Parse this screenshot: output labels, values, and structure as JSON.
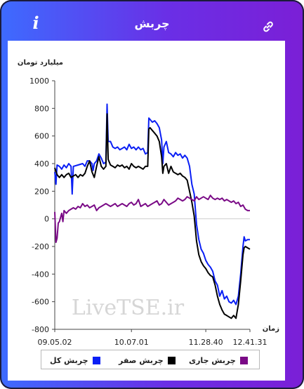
{
  "header": {
    "title": "چربش",
    "info_label": "i",
    "link_icon": "link-icon"
  },
  "colors": {
    "total": "#0a1ff5",
    "zero": "#000000",
    "current": "#7a0a86",
    "watermark": "#d6d6d6"
  },
  "watermark": "LiveTSE.ir",
  "chart_data": {
    "type": "line",
    "ylabel": "میلیارد تومان",
    "xlabel": "زمان",
    "ylim": [
      -800,
      1000
    ],
    "yticks": [
      "1000",
      "800",
      "600",
      "400",
      "200",
      "0",
      "-200",
      "-400",
      "-600",
      "-800"
    ],
    "xticks": [
      "09.05.02",
      "10.07.01",
      "11.28.40",
      "12.41.31"
    ],
    "grid": false,
    "legend": "bottom",
    "series": [
      {
        "name": "چربش کل",
        "color": "#0a1ff5",
        "points": [
          [
            0,
            340
          ],
          [
            0.5,
            250
          ],
          [
            1,
            390
          ],
          [
            2,
            380
          ],
          [
            3,
            360
          ],
          [
            4,
            390
          ],
          [
            5,
            370
          ],
          [
            6,
            400
          ],
          [
            7,
            380
          ],
          [
            7.5,
            180
          ],
          [
            8,
            380
          ],
          [
            10,
            390
          ],
          [
            12,
            400
          ],
          [
            13,
            380
          ],
          [
            14,
            420
          ],
          [
            15,
            420
          ],
          [
            16,
            400
          ],
          [
            16.5,
            350
          ],
          [
            17,
            400
          ],
          [
            18,
            420
          ],
          [
            19,
            470
          ],
          [
            20,
            440
          ],
          [
            21,
            400
          ],
          [
            22,
            410
          ],
          [
            22.5,
            830
          ],
          [
            23,
            560
          ],
          [
            24,
            560
          ],
          [
            25,
            520
          ],
          [
            26,
            510
          ],
          [
            27,
            520
          ],
          [
            28,
            500
          ],
          [
            29,
            510
          ],
          [
            30,
            520
          ],
          [
            31,
            500
          ],
          [
            32,
            540
          ],
          [
            33,
            510
          ],
          [
            34,
            520
          ],
          [
            35,
            500
          ],
          [
            36,
            520
          ],
          [
            37,
            500
          ],
          [
            38,
            510
          ],
          [
            39,
            470
          ],
          [
            40,
            480
          ],
          [
            40.5,
            730
          ],
          [
            41,
            720
          ],
          [
            42,
            700
          ],
          [
            43,
            710
          ],
          [
            44,
            690
          ],
          [
            45,
            660
          ],
          [
            46,
            570
          ],
          [
            46.5,
            400
          ],
          [
            47,
            520
          ],
          [
            48,
            560
          ],
          [
            49,
            480
          ],
          [
            50,
            470
          ],
          [
            51,
            450
          ],
          [
            52,
            480
          ],
          [
            53,
            460
          ],
          [
            54,
            470
          ],
          [
            55,
            440
          ],
          [
            56,
            460
          ],
          [
            57,
            440
          ],
          [
            58,
            380
          ],
          [
            59,
            250
          ],
          [
            60,
            180
          ],
          [
            61,
            -40
          ],
          [
            62,
            -150
          ],
          [
            63,
            -220
          ],
          [
            64,
            -250
          ],
          [
            65,
            -300
          ],
          [
            66,
            -330
          ],
          [
            67,
            -350
          ],
          [
            68,
            -380
          ],
          [
            69,
            -450
          ],
          [
            70,
            -480
          ],
          [
            71,
            -560
          ],
          [
            72,
            -520
          ],
          [
            73,
            -580
          ],
          [
            74,
            -560
          ],
          [
            75,
            -600
          ],
          [
            76,
            -610
          ],
          [
            77,
            -590
          ],
          [
            78,
            -620
          ],
          [
            79,
            -560
          ],
          [
            80,
            -400
          ],
          [
            81,
            -200
          ],
          [
            81.5,
            -130
          ],
          [
            82,
            -160
          ],
          [
            83,
            -150
          ],
          [
            84,
            -150
          ]
        ]
      },
      {
        "name": "چربش صفر",
        "color": "#000000",
        "points": [
          [
            0,
            370
          ],
          [
            1,
            320
          ],
          [
            2,
            300
          ],
          [
            3,
            320
          ],
          [
            4,
            300
          ],
          [
            5,
            320
          ],
          [
            6,
            330
          ],
          [
            7,
            300
          ],
          [
            8,
            310
          ],
          [
            9,
            320
          ],
          [
            10,
            300
          ],
          [
            11,
            320
          ],
          [
            12,
            310
          ],
          [
            13,
            330
          ],
          [
            14,
            380
          ],
          [
            15,
            420
          ],
          [
            16,
            340
          ],
          [
            17,
            300
          ],
          [
            18,
            380
          ],
          [
            19,
            450
          ],
          [
            20,
            380
          ],
          [
            21,
            360
          ],
          [
            22,
            380
          ],
          [
            22.5,
            760
          ],
          [
            23,
            430
          ],
          [
            24,
            390
          ],
          [
            25,
            380
          ],
          [
            26,
            370
          ],
          [
            27,
            390
          ],
          [
            28,
            380
          ],
          [
            29,
            390
          ],
          [
            30,
            370
          ],
          [
            31,
            380
          ],
          [
            32,
            360
          ],
          [
            33,
            400
          ],
          [
            34,
            380
          ],
          [
            35,
            370
          ],
          [
            36,
            380
          ],
          [
            37,
            370
          ],
          [
            38,
            360
          ],
          [
            39,
            380
          ],
          [
            40,
            380
          ],
          [
            40.5,
            650
          ],
          [
            41,
            660
          ],
          [
            42,
            640
          ],
          [
            43,
            620
          ],
          [
            44,
            600
          ],
          [
            45,
            560
          ],
          [
            46,
            450
          ],
          [
            46.5,
            330
          ],
          [
            47,
            380
          ],
          [
            48,
            400
          ],
          [
            49,
            330
          ],
          [
            50,
            380
          ],
          [
            51,
            340
          ],
          [
            52,
            330
          ],
          [
            53,
            320
          ],
          [
            54,
            330
          ],
          [
            55,
            310
          ],
          [
            56,
            300
          ],
          [
            57,
            280
          ],
          [
            58,
            200
          ],
          [
            59,
            120
          ],
          [
            60,
            20
          ],
          [
            61,
            -160
          ],
          [
            62,
            -260
          ],
          [
            63,
            -310
          ],
          [
            64,
            -340
          ],
          [
            65,
            -360
          ],
          [
            66,
            -390
          ],
          [
            67,
            -410
          ],
          [
            68,
            -420
          ],
          [
            69,
            -480
          ],
          [
            70,
            -560
          ],
          [
            71,
            -620
          ],
          [
            72,
            -660
          ],
          [
            73,
            -690
          ],
          [
            74,
            -700
          ],
          [
            75,
            -710
          ],
          [
            76,
            -720
          ],
          [
            77,
            -700
          ],
          [
            78,
            -720
          ],
          [
            79,
            -620
          ],
          [
            80,
            -450
          ],
          [
            81,
            -260
          ],
          [
            81.5,
            -210
          ],
          [
            82,
            -200
          ],
          [
            83,
            -210
          ],
          [
            84,
            -220
          ]
        ]
      },
      {
        "name": "چربش جاری",
        "color": "#7a0a86",
        "points": [
          [
            0,
            50
          ],
          [
            0.5,
            -170
          ],
          [
            1,
            -140
          ],
          [
            1.5,
            -30
          ],
          [
            2,
            -20
          ],
          [
            3,
            40
          ],
          [
            3.5,
            -20
          ],
          [
            4,
            60
          ],
          [
            5,
            40
          ],
          [
            6,
            60
          ],
          [
            7,
            70
          ],
          [
            8,
            80
          ],
          [
            9,
            70
          ],
          [
            10,
            90
          ],
          [
            11,
            80
          ],
          [
            12,
            110
          ],
          [
            13,
            90
          ],
          [
            14,
            100
          ],
          [
            15,
            80
          ],
          [
            16,
            90
          ],
          [
            17,
            100
          ],
          [
            18,
            60
          ],
          [
            19,
            80
          ],
          [
            20,
            90
          ],
          [
            21,
            100
          ],
          [
            22,
            110
          ],
          [
            23,
            100
          ],
          [
            24,
            90
          ],
          [
            25,
            100
          ],
          [
            26,
            110
          ],
          [
            27,
            90
          ],
          [
            28,
            100
          ],
          [
            29,
            110
          ],
          [
            30,
            100
          ],
          [
            31,
            90
          ],
          [
            32,
            110
          ],
          [
            33,
            120
          ],
          [
            34,
            100
          ],
          [
            35,
            110
          ],
          [
            36,
            140
          ],
          [
            37,
            90
          ],
          [
            38,
            100
          ],
          [
            39,
            110
          ],
          [
            40,
            90
          ],
          [
            41,
            100
          ],
          [
            42,
            110
          ],
          [
            43,
            120
          ],
          [
            44,
            130
          ],
          [
            45,
            100
          ],
          [
            46,
            110
          ],
          [
            47,
            140
          ],
          [
            48,
            120
          ],
          [
            49,
            100
          ],
          [
            50,
            110
          ],
          [
            51,
            120
          ],
          [
            52,
            130
          ],
          [
            53,
            150
          ],
          [
            54,
            140
          ],
          [
            55,
            130
          ],
          [
            56,
            140
          ],
          [
            57,
            160
          ],
          [
            58,
            150
          ],
          [
            59,
            140
          ],
          [
            60,
            130
          ],
          [
            61,
            160
          ],
          [
            62,
            140
          ],
          [
            63,
            150
          ],
          [
            64,
            160
          ],
          [
            65,
            150
          ],
          [
            66,
            140
          ],
          [
            67,
            170
          ],
          [
            68,
            150
          ],
          [
            69,
            140
          ],
          [
            70,
            150
          ],
          [
            71,
            140
          ],
          [
            72,
            150
          ],
          [
            73,
            130
          ],
          [
            74,
            140
          ],
          [
            75,
            130
          ],
          [
            76,
            120
          ],
          [
            77,
            130
          ],
          [
            78,
            110
          ],
          [
            79,
            120
          ],
          [
            80,
            90
          ],
          [
            81,
            100
          ],
          [
            82,
            70
          ],
          [
            83,
            60
          ],
          [
            84,
            60
          ]
        ]
      }
    ]
  }
}
